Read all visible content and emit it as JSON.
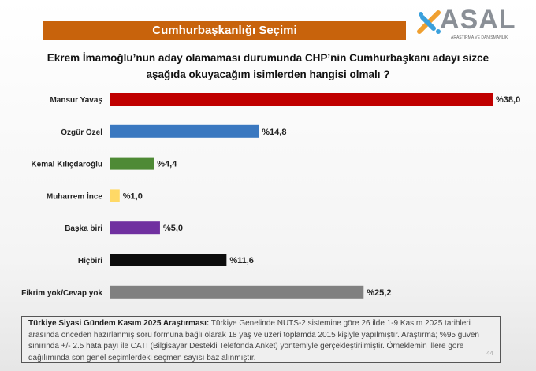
{
  "header": {
    "banner": "Cumhurbaşkanlığı Seçimi",
    "logo_text": "ASAL",
    "logo_sub": "ARAŞTIRMA VE DANIŞMANLIK"
  },
  "chart_data": {
    "type": "bar",
    "orientation": "horizontal",
    "title": "Ekrem İmamoğlu’nun aday olamaması durumunda CHP’nin Cumhurbaşkanı adayı sizce aşağıda okuyacağım isimlerden hangisi olmalı ?",
    "categories": [
      "Mansur Yavaş",
      "Özgür Özel",
      "Kemal Kılıçdaroğlu",
      "Muharrem İnce",
      "Başka biri",
      "Hiçbiri",
      "Fikrim yok/Cevap yok"
    ],
    "values": [
      38.0,
      14.8,
      4.4,
      1.0,
      5.0,
      11.6,
      25.2
    ],
    "labels": [
      "%38,0",
      "%14,8",
      "%4,4",
      "%1,0",
      "%5,0",
      "%11,6",
      "%25,2"
    ],
    "colors": [
      "#c00000",
      "#3a78c0",
      "#4e8a35",
      "#ffd966",
      "#7030a0",
      "#0d0d0d",
      "#808080"
    ],
    "xlim": [
      0,
      38
    ],
    "grid": false
  },
  "footer": {
    "bold": "Türkiye Siyasi Gündem Kasım 2025 Araştırması:",
    "text": " Türkiye Genelinde NUTS-2 sistemine göre 26 ilde 1-9 Kasım 2025 tarihleri arasında önceden hazırlanmış soru formuna bağlı olarak 18 yaş ve üzeri toplamda 2015 kişiyle yapılmıştır. Araştırma; %95 güven sınırında +/- 2.5 hata payı ile CATI (Bilgisayar Destekli Telefonda Anket) yöntemiyle gerçekleştirilmiştir. Örneklemin illere göre dağılımında son genel seçimlerdeki seçmen sayısı baz alınmıştır.",
    "page": "44"
  }
}
